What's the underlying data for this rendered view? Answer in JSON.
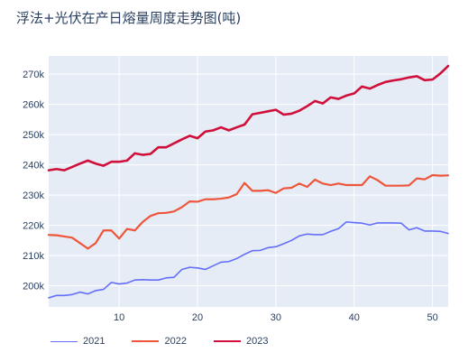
{
  "chart_data": {
    "type": "line",
    "title": "浮法+光伏在产日熔量周度走势图(吨)",
    "xlabel": "",
    "ylabel": "",
    "xlim": [
      1,
      52
    ],
    "ylim": [
      193000,
      276000
    ],
    "xticks": [
      10,
      20,
      30,
      40,
      50
    ],
    "yticks": [
      200000,
      210000,
      220000,
      230000,
      240000,
      250000,
      260000,
      270000
    ],
    "ytick_labels": [
      "200k",
      "210k",
      "220k",
      "230k",
      "240k",
      "250k",
      "260k",
      "270k"
    ],
    "grid": true,
    "legend_position": "bottom-left",
    "series": [
      {
        "name": "2021",
        "color": "#636efa",
        "width": 1.6,
        "x": [
          1,
          2,
          3,
          4,
          5,
          6,
          7,
          8,
          9,
          10,
          11,
          12,
          13,
          14,
          15,
          16,
          17,
          18,
          19,
          20,
          21,
          22,
          23,
          24,
          25,
          26,
          27,
          28,
          29,
          30,
          31,
          32,
          33,
          34,
          35,
          36,
          37,
          38,
          39,
          40,
          41,
          42,
          43,
          44,
          45,
          46,
          47,
          48,
          49,
          50,
          51,
          52
        ],
        "y": [
          196000,
          196800,
          196800,
          197100,
          197900,
          197300,
          198400,
          198800,
          201100,
          200600,
          200900,
          201900,
          202000,
          201900,
          201900,
          202600,
          202800,
          205400,
          206100,
          205900,
          205400,
          206600,
          207800,
          208000,
          209000,
          210400,
          211600,
          211700,
          212600,
          212900,
          213900,
          215000,
          216500,
          217100,
          216900,
          216900,
          218000,
          218900,
          221100,
          220900,
          220700,
          220100,
          220800,
          220800,
          220800,
          220700,
          218500,
          219200,
          218100,
          218100,
          218000,
          217300
        ]
      },
      {
        "name": "2022",
        "color": "#ef553b",
        "width": 2.2,
        "x": [
          1,
          2,
          3,
          4,
          5,
          6,
          7,
          8,
          9,
          10,
          11,
          12,
          13,
          14,
          15,
          16,
          17,
          18,
          19,
          20,
          21,
          22,
          23,
          24,
          25,
          26,
          27,
          28,
          29,
          30,
          31,
          32,
          33,
          34,
          35,
          36,
          37,
          38,
          39,
          40,
          41,
          42,
          43,
          44,
          45,
          46,
          47,
          48,
          49,
          50,
          51,
          52
        ],
        "y": [
          216800,
          216700,
          216300,
          215900,
          214100,
          212300,
          214100,
          218300,
          218300,
          215600,
          218800,
          218300,
          221100,
          223100,
          224000,
          224100,
          224600,
          226000,
          227900,
          227800,
          228600,
          228600,
          228800,
          229200,
          230300,
          234000,
          231400,
          231400,
          231600,
          230700,
          232200,
          232400,
          233800,
          232700,
          235100,
          233800,
          233300,
          233800,
          233300,
          233300,
          233300,
          236200,
          234900,
          233100,
          233100,
          233100,
          233200,
          235500,
          235200,
          236600,
          236400,
          236500
        ]
      },
      {
        "name": "2023",
        "color": "#d0103a",
        "width": 2.6,
        "x": [
          1,
          2,
          3,
          4,
          5,
          6,
          7,
          8,
          9,
          10,
          11,
          12,
          13,
          14,
          15,
          16,
          17,
          18,
          19,
          20,
          21,
          22,
          23,
          24,
          25,
          26,
          27,
          28,
          29,
          30,
          31,
          32,
          33,
          34,
          35,
          36,
          37,
          38,
          39,
          40,
          41,
          42,
          43,
          44,
          45,
          46,
          47,
          48,
          49,
          50,
          51,
          52
        ],
        "y": [
          238200,
          238600,
          238200,
          239300,
          240400,
          241400,
          240400,
          239700,
          241000,
          241000,
          241400,
          243800,
          243300,
          243600,
          245800,
          245800,
          247100,
          248400,
          249600,
          248800,
          251000,
          251400,
          252400,
          251400,
          252400,
          253300,
          256700,
          257200,
          257700,
          258200,
          256600,
          256900,
          257900,
          259400,
          261100,
          260300,
          262300,
          261800,
          262900,
          263600,
          265900,
          265200,
          266400,
          267400,
          267900,
          268300,
          268900,
          269300,
          268000,
          268200,
          270200,
          272700
        ]
      }
    ]
  }
}
